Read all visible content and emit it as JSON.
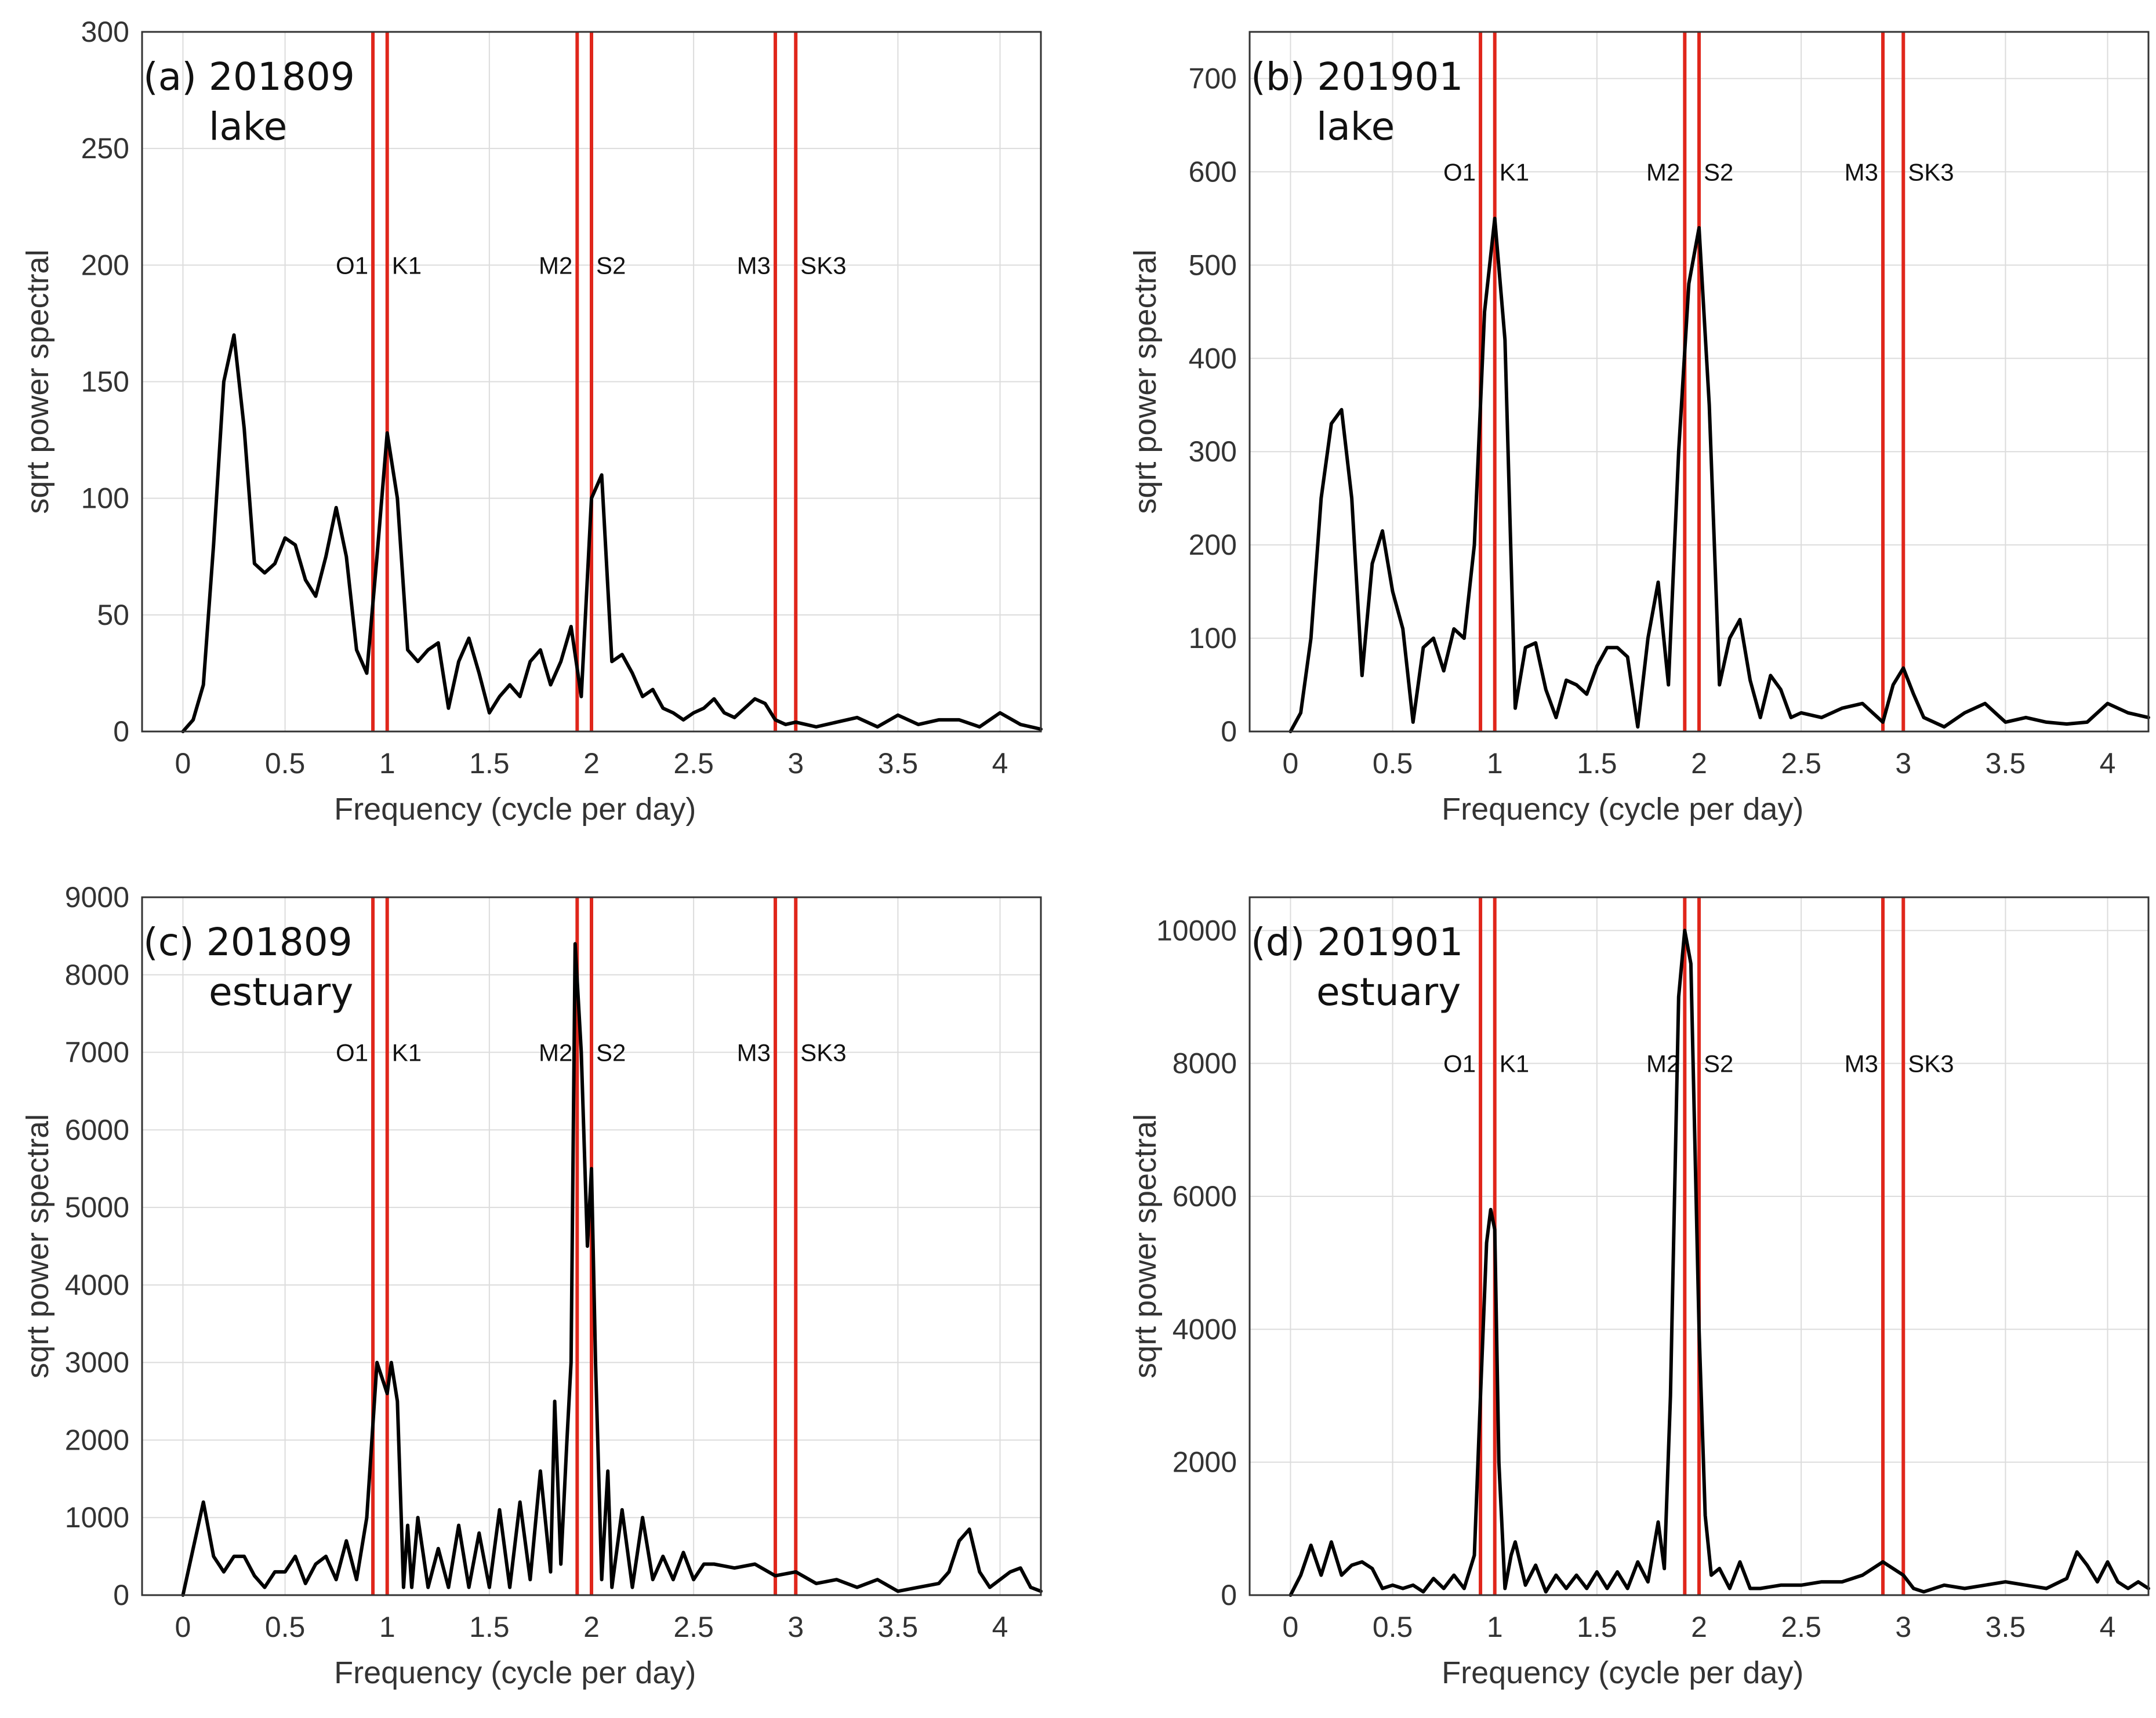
{
  "figure": {
    "x_label": "Frequency (cycle per day)",
    "y_label": "sqrt power spectral",
    "line_color": "#e0261b",
    "curve_color": "#000000",
    "grid_color": "#dcdcdc"
  },
  "chart_data": [
    {
      "type": "line",
      "id": "a",
      "title": "(a) 201809",
      "subtitle": "lake",
      "xlabel": "Frequency (cycle per day)",
      "ylabel": "sqrt power spectral",
      "xlim": [
        -0.2,
        4.2
      ],
      "ylim": [
        0,
        300
      ],
      "xticks": [
        0,
        0.5,
        1,
        1.5,
        2,
        2.5,
        3,
        3.5,
        4
      ],
      "xtick_labels": [
        "0",
        "0.5",
        "1",
        "1.5",
        "2",
        "2.5",
        "3",
        "3.5",
        "4"
      ],
      "yticks": [
        0,
        50,
        100,
        150,
        200,
        250,
        300
      ],
      "ytick_labels": [
        "0",
        "50",
        "100",
        "150",
        "200",
        "250",
        "300"
      ],
      "grid": true,
      "constituent_label_y": 200,
      "constituents": [
        {
          "name": "O1",
          "freq": 0.93,
          "side": "left"
        },
        {
          "name": "K1",
          "freq": 1.0,
          "side": "right"
        },
        {
          "name": "M2",
          "freq": 1.93,
          "side": "left"
        },
        {
          "name": "S2",
          "freq": 2.0,
          "side": "right"
        },
        {
          "name": "M3",
          "freq": 2.9,
          "side": "left"
        },
        {
          "name": "SK3",
          "freq": 3.0,
          "side": "right"
        }
      ],
      "series": [
        {
          "name": "spectrum",
          "x": [
            0,
            0.05,
            0.1,
            0.15,
            0.2,
            0.25,
            0.3,
            0.35,
            0.4,
            0.45,
            0.5,
            0.55,
            0.6,
            0.65,
            0.7,
            0.75,
            0.8,
            0.85,
            0.9,
            0.95,
            1.0,
            1.05,
            1.1,
            1.15,
            1.2,
            1.25,
            1.3,
            1.35,
            1.4,
            1.45,
            1.5,
            1.55,
            1.6,
            1.65,
            1.7,
            1.75,
            1.8,
            1.85,
            1.9,
            1.95,
            2.0,
            2.05,
            2.1,
            2.15,
            2.2,
            2.25,
            2.3,
            2.35,
            2.4,
            2.45,
            2.5,
            2.55,
            2.6,
            2.65,
            2.7,
            2.75,
            2.8,
            2.85,
            2.9,
            2.95,
            3.0,
            3.05,
            3.1,
            3.2,
            3.3,
            3.4,
            3.5,
            3.6,
            3.7,
            3.8,
            3.9,
            4.0,
            4.1,
            4.2
          ],
          "y": [
            0,
            5,
            20,
            80,
            150,
            170,
            130,
            72,
            68,
            72,
            83,
            80,
            65,
            58,
            75,
            96,
            75,
            35,
            25,
            75,
            128,
            100,
            35,
            30,
            35,
            38,
            10,
            30,
            40,
            25,
            8,
            15,
            20,
            15,
            30,
            35,
            20,
            30,
            45,
            15,
            100,
            110,
            30,
            33,
            25,
            15,
            18,
            10,
            8,
            5,
            8,
            10,
            14,
            8,
            6,
            10,
            14,
            12,
            5,
            3,
            4,
            3,
            2,
            4,
            6,
            2,
            7,
            3,
            5,
            5,
            2,
            8,
            3,
            1
          ]
        }
      ]
    },
    {
      "type": "line",
      "id": "b",
      "title": "(b) 201901",
      "subtitle": "lake",
      "xlabel": "Frequency (cycle per day)",
      "ylabel": "sqrt power spectral",
      "xlim": [
        -0.2,
        4.2
      ],
      "ylim": [
        0,
        750
      ],
      "xticks": [
        0,
        0.5,
        1,
        1.5,
        2,
        2.5,
        3,
        3.5,
        4
      ],
      "xtick_labels": [
        "0",
        "0.5",
        "1",
        "1.5",
        "2",
        "2.5",
        "3",
        "3.5",
        "4"
      ],
      "yticks": [
        0,
        100,
        200,
        300,
        400,
        500,
        600,
        700
      ],
      "ytick_labels": [
        "0",
        "100",
        "200",
        "300",
        "400",
        "500",
        "600",
        "700"
      ],
      "grid": true,
      "constituent_label_y": 600,
      "constituents": [
        {
          "name": "O1",
          "freq": 0.93,
          "side": "left"
        },
        {
          "name": "K1",
          "freq": 1.0,
          "side": "right"
        },
        {
          "name": "M2",
          "freq": 1.93,
          "side": "left"
        },
        {
          "name": "S2",
          "freq": 2.0,
          "side": "right"
        },
        {
          "name": "M3",
          "freq": 2.9,
          "side": "left"
        },
        {
          "name": "SK3",
          "freq": 3.0,
          "side": "right"
        }
      ],
      "series": [
        {
          "name": "spectrum",
          "x": [
            0,
            0.05,
            0.1,
            0.15,
            0.2,
            0.25,
            0.3,
            0.35,
            0.4,
            0.45,
            0.5,
            0.55,
            0.6,
            0.65,
            0.7,
            0.75,
            0.8,
            0.85,
            0.9,
            0.95,
            1.0,
            1.05,
            1.1,
            1.15,
            1.2,
            1.25,
            1.3,
            1.35,
            1.4,
            1.45,
            1.5,
            1.55,
            1.6,
            1.65,
            1.7,
            1.75,
            1.8,
            1.85,
            1.9,
            1.95,
            2.0,
            2.05,
            2.1,
            2.15,
            2.2,
            2.25,
            2.3,
            2.35,
            2.4,
            2.45,
            2.5,
            2.6,
            2.7,
            2.8,
            2.9,
            2.95,
            3.0,
            3.05,
            3.1,
            3.2,
            3.3,
            3.4,
            3.5,
            3.6,
            3.7,
            3.8,
            3.9,
            4.0,
            4.1,
            4.2
          ],
          "y": [
            0,
            20,
            100,
            250,
            330,
            345,
            250,
            60,
            180,
            215,
            150,
            110,
            10,
            90,
            100,
            65,
            110,
            100,
            200,
            450,
            550,
            420,
            25,
            90,
            95,
            45,
            15,
            55,
            50,
            40,
            70,
            90,
            90,
            80,
            5,
            100,
            160,
            50,
            300,
            480,
            540,
            350,
            50,
            100,
            120,
            55,
            15,
            60,
            45,
            15,
            20,
            15,
            25,
            30,
            10,
            50,
            68,
            40,
            15,
            5,
            20,
            30,
            10,
            15,
            10,
            8,
            10,
            30,
            20,
            15
          ]
        }
      ]
    },
    {
      "type": "line",
      "id": "c",
      "title": "(c) 201809",
      "subtitle": "estuary",
      "xlabel": "Frequency (cycle per day)",
      "ylabel": "sqrt power spectral",
      "xlim": [
        -0.2,
        4.2
      ],
      "ylim": [
        0,
        9000
      ],
      "xticks": [
        0,
        0.5,
        1,
        1.5,
        2,
        2.5,
        3,
        3.5,
        4
      ],
      "xtick_labels": [
        "0",
        "0.5",
        "1",
        "1.5",
        "2",
        "2.5",
        "3",
        "3.5",
        "4"
      ],
      "yticks": [
        0,
        1000,
        2000,
        3000,
        4000,
        5000,
        6000,
        7000,
        8000,
        9000
      ],
      "ytick_labels": [
        "0",
        "1000",
        "2000",
        "3000",
        "4000",
        "5000",
        "6000",
        "7000",
        "8000",
        "9000"
      ],
      "grid": true,
      "constituent_label_y": 7000,
      "constituents": [
        {
          "name": "O1",
          "freq": 0.93,
          "side": "left"
        },
        {
          "name": "K1",
          "freq": 1.0,
          "side": "right"
        },
        {
          "name": "M2",
          "freq": 1.93,
          "side": "left"
        },
        {
          "name": "S2",
          "freq": 2.0,
          "side": "right"
        },
        {
          "name": "M3",
          "freq": 2.9,
          "side": "left"
        },
        {
          "name": "SK3",
          "freq": 3.0,
          "side": "right"
        }
      ],
      "series": [
        {
          "name": "spectrum",
          "x": [
            0,
            0.05,
            0.1,
            0.15,
            0.2,
            0.25,
            0.3,
            0.35,
            0.4,
            0.45,
            0.5,
            0.55,
            0.6,
            0.65,
            0.7,
            0.75,
            0.8,
            0.85,
            0.9,
            0.95,
            1.0,
            1.02,
            1.05,
            1.08,
            1.1,
            1.12,
            1.15,
            1.2,
            1.25,
            1.3,
            1.35,
            1.4,
            1.45,
            1.5,
            1.55,
            1.6,
            1.65,
            1.7,
            1.75,
            1.8,
            1.82,
            1.85,
            1.88,
            1.9,
            1.92,
            1.95,
            1.98,
            2.0,
            2.02,
            2.05,
            2.08,
            2.1,
            2.15,
            2.2,
            2.25,
            2.3,
            2.35,
            2.4,
            2.45,
            2.5,
            2.55,
            2.6,
            2.7,
            2.8,
            2.9,
            3.0,
            3.1,
            3.2,
            3.3,
            3.4,
            3.5,
            3.6,
            3.7,
            3.75,
            3.8,
            3.85,
            3.9,
            3.95,
            4.0,
            4.05,
            4.1,
            4.15,
            4.2
          ],
          "y": [
            0,
            600,
            1200,
            500,
            300,
            500,
            500,
            250,
            100,
            300,
            300,
            500,
            150,
            400,
            500,
            200,
            700,
            200,
            1000,
            3000,
            2600,
            3000,
            2500,
            100,
            900,
            100,
            1000,
            100,
            600,
            100,
            900,
            100,
            800,
            100,
            1100,
            100,
            1200,
            200,
            1600,
            300,
            2500,
            400,
            2000,
            3000,
            8400,
            7000,
            4500,
            5500,
            3000,
            200,
            1600,
            100,
            1100,
            100,
            1000,
            200,
            500,
            200,
            550,
            200,
            400,
            400,
            350,
            400,
            250,
            300,
            150,
            200,
            100,
            200,
            50,
            100,
            150,
            300,
            700,
            850,
            300,
            100,
            200,
            300,
            350,
            100,
            50
          ]
        }
      ]
    },
    {
      "type": "line",
      "id": "d",
      "title": "(d) 201901",
      "subtitle": "estuary",
      "xlabel": "Frequency (cycle per day)",
      "ylabel": "sqrt power spectral",
      "xlim": [
        -0.2,
        4.2
      ],
      "ylim": [
        0,
        10500
      ],
      "xticks": [
        0,
        0.5,
        1,
        1.5,
        2,
        2.5,
        3,
        3.5,
        4
      ],
      "xtick_labels": [
        "0",
        "0.5",
        "1",
        "1.5",
        "2",
        "2.5",
        "3",
        "3.5",
        "4"
      ],
      "yticks": [
        0,
        2000,
        4000,
        6000,
        8000,
        10000
      ],
      "ytick_labels": [
        "0",
        "2000",
        "4000",
        "6000",
        "8000",
        "10000"
      ],
      "grid": true,
      "constituent_label_y": 8000,
      "constituents": [
        {
          "name": "O1",
          "freq": 0.93,
          "side": "left"
        },
        {
          "name": "K1",
          "freq": 1.0,
          "side": "right"
        },
        {
          "name": "M2",
          "freq": 1.93,
          "side": "left"
        },
        {
          "name": "S2",
          "freq": 2.0,
          "side": "right"
        },
        {
          "name": "M3",
          "freq": 2.9,
          "side": "left"
        },
        {
          "name": "SK3",
          "freq": 3.0,
          "side": "right"
        }
      ],
      "series": [
        {
          "name": "spectrum",
          "x": [
            0,
            0.05,
            0.1,
            0.15,
            0.2,
            0.25,
            0.3,
            0.35,
            0.4,
            0.45,
            0.5,
            0.55,
            0.6,
            0.65,
            0.7,
            0.75,
            0.8,
            0.85,
            0.9,
            0.93,
            0.96,
            0.98,
            1.0,
            1.02,
            1.05,
            1.08,
            1.1,
            1.15,
            1.2,
            1.25,
            1.3,
            1.35,
            1.4,
            1.45,
            1.5,
            1.55,
            1.6,
            1.65,
            1.7,
            1.75,
            1.8,
            1.83,
            1.86,
            1.9,
            1.93,
            1.96,
            2.0,
            2.03,
            2.06,
            2.1,
            2.15,
            2.2,
            2.25,
            2.3,
            2.4,
            2.5,
            2.6,
            2.7,
            2.8,
            2.9,
            3.0,
            3.05,
            3.1,
            3.2,
            3.3,
            3.4,
            3.5,
            3.6,
            3.7,
            3.8,
            3.85,
            3.9,
            3.95,
            4.0,
            4.05,
            4.1,
            4.15,
            4.2
          ],
          "y": [
            0,
            300,
            750,
            300,
            800,
            300,
            450,
            500,
            400,
            100,
            150,
            100,
            150,
            50,
            250,
            100,
            300,
            100,
            600,
            3000,
            5300,
            5800,
            5500,
            2000,
            100,
            600,
            800,
            150,
            450,
            50,
            300,
            100,
            300,
            100,
            350,
            100,
            350,
            100,
            500,
            200,
            1100,
            400,
            3000,
            9000,
            10000,
            9500,
            4000,
            1200,
            300,
            400,
            100,
            500,
            100,
            100,
            150,
            150,
            200,
            200,
            300,
            500,
            300,
            100,
            50,
            150,
            100,
            150,
            200,
            150,
            100,
            250,
            650,
            450,
            200,
            500,
            200,
            100,
            200,
            100
          ]
        }
      ]
    }
  ]
}
